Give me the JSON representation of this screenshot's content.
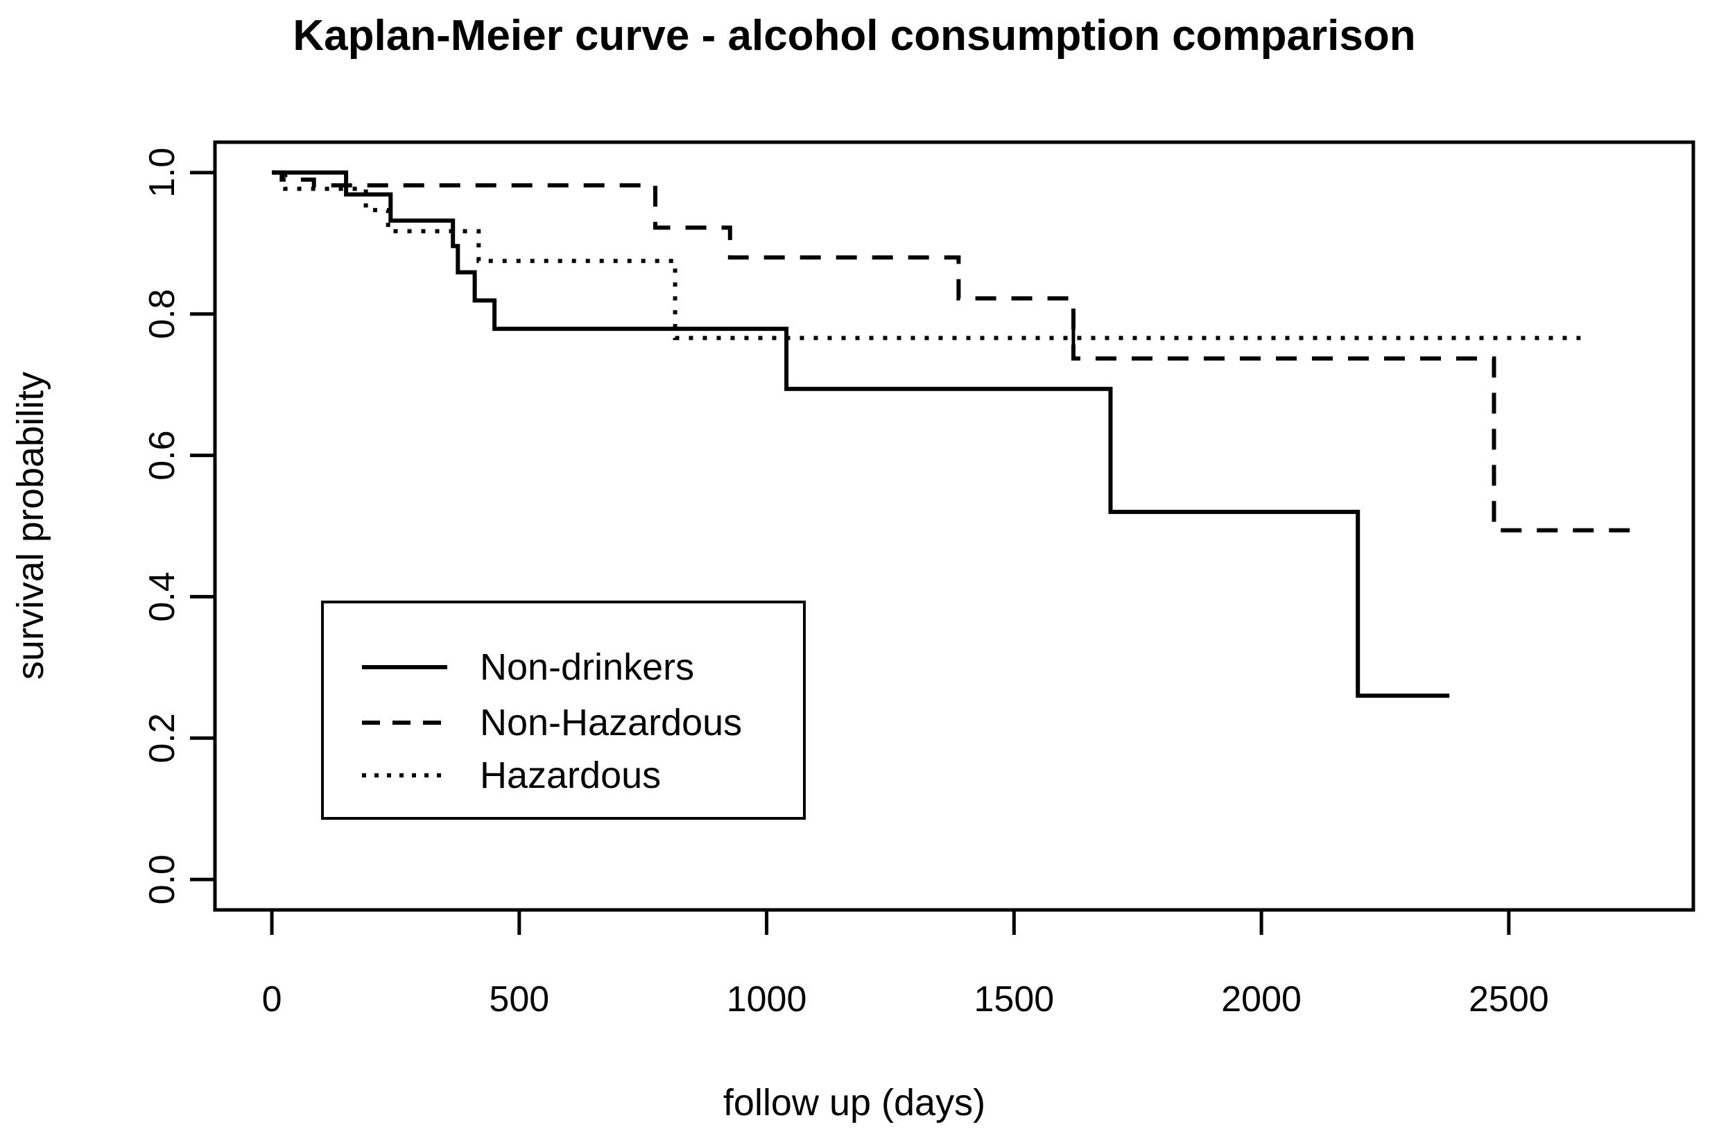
{
  "figure": {
    "background_color": "#ffffff",
    "foreground_color": "#000000"
  },
  "chart_data": {
    "type": "line",
    "subtype": "kaplan-meier-step",
    "title": "Kaplan-Meier curve - alcohol consumption comparison",
    "xlabel": "follow up (days)",
    "ylabel": "survival probability",
    "x_ticks": [
      "0",
      "500",
      "1000",
      "1500",
      "2000",
      "2500"
    ],
    "x_tick_values": [
      0,
      500,
      1000,
      1500,
      2000,
      2500
    ],
    "y_ticks": [
      "0.0",
      "0.2",
      "0.4",
      "0.6",
      "0.8",
      "1.0"
    ],
    "y_tick_values": [
      0.0,
      0.2,
      0.4,
      0.6,
      0.8,
      1.0
    ],
    "xlim": [
      -115,
      2873
    ],
    "ylim": [
      -0.043,
      1.043
    ],
    "grid": false,
    "legend_position": "inside-left-middle",
    "series": [
      {
        "name": "Non-drinkers",
        "line_style": "solid",
        "points": [
          [
            0,
            1.0
          ],
          [
            150,
            0.969
          ],
          [
            240,
            0.932
          ],
          [
            366,
            0.896
          ],
          [
            376,
            0.859
          ],
          [
            410,
            0.819
          ],
          [
            450,
            0.779
          ],
          [
            1040,
            0.694
          ],
          [
            1695,
            0.52
          ],
          [
            2195,
            0.26
          ]
        ],
        "end_day": 2380,
        "censor_days": []
      },
      {
        "name": "Non-Hazardous",
        "line_style": "dashed",
        "points": [
          [
            0,
            1.0
          ],
          [
            20,
            0.99
          ],
          [
            85,
            0.982
          ],
          [
            775,
            0.922
          ],
          [
            926,
            0.88
          ],
          [
            1388,
            0.822
          ],
          [
            1620,
            0.737
          ],
          [
            2470,
            0.494
          ]
        ],
        "end_day": 2750,
        "censor_days": []
      },
      {
        "name": "Hazardous",
        "line_style": "dotted",
        "points": [
          [
            0,
            1.0
          ],
          [
            27,
            0.977
          ],
          [
            190,
            0.947
          ],
          [
            235,
            0.917
          ],
          [
            418,
            0.875
          ],
          [
            815,
            0.766
          ]
        ],
        "end_day": 2645,
        "censor_days": [
          1620
        ]
      }
    ]
  }
}
